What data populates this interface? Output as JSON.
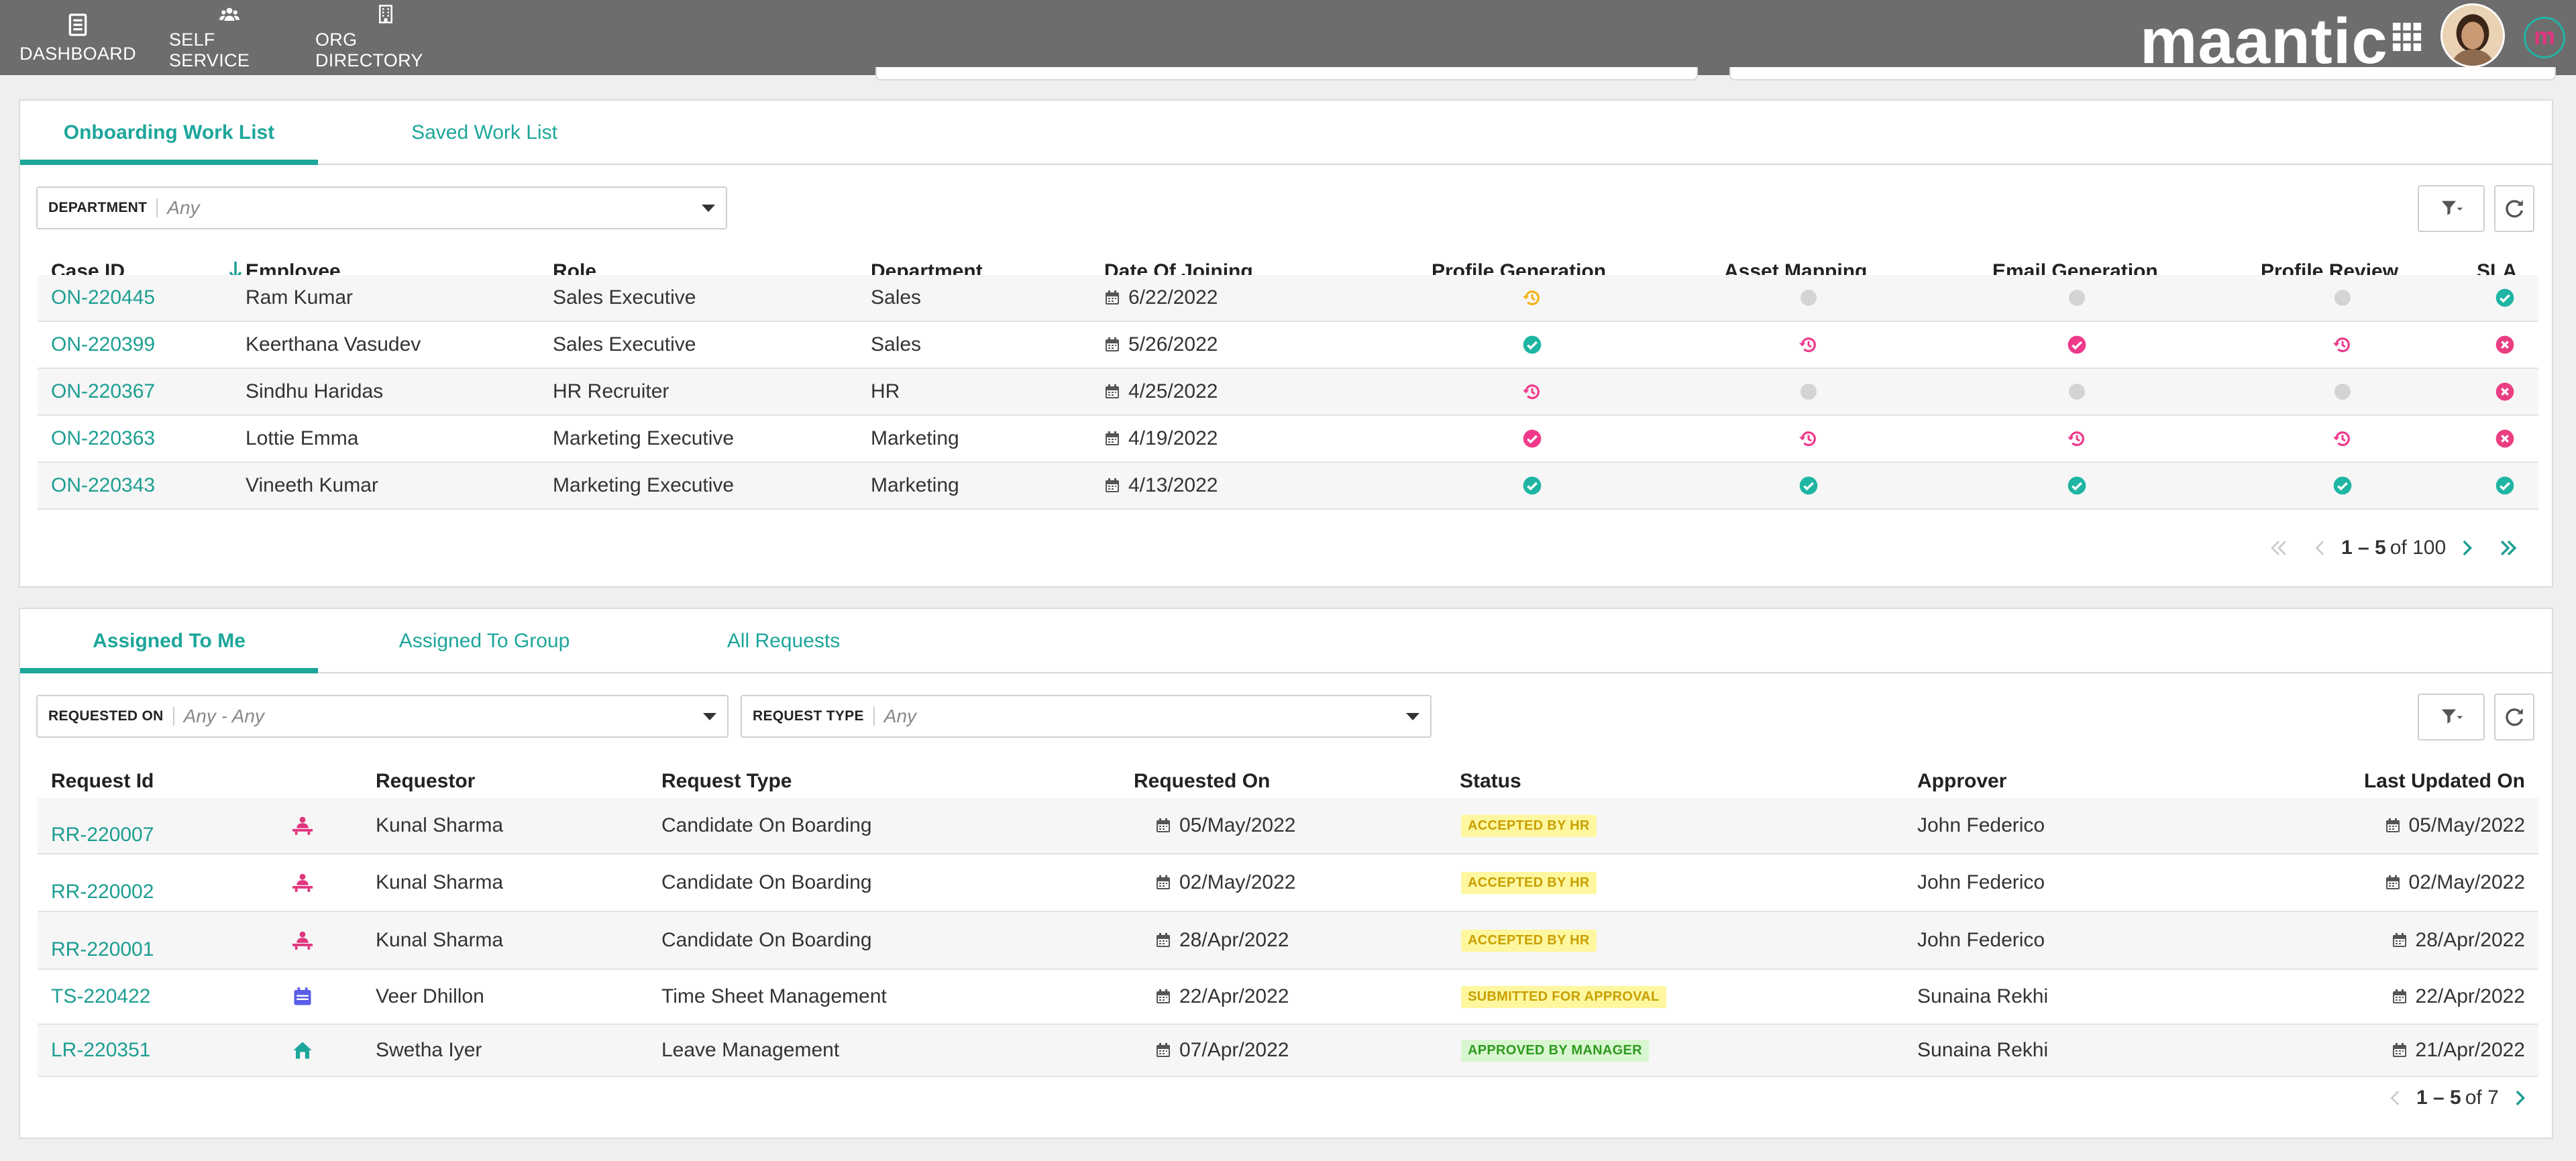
{
  "topbar": {
    "nav": [
      {
        "label": "DASHBOARD",
        "icon": "dashboard-icon"
      },
      {
        "label": "SELF SERVICE",
        "icon": "people-icon"
      },
      {
        "label": "ORG DIRECTORY",
        "icon": "building-icon"
      }
    ],
    "brand": "maantic",
    "mini_logo": "m",
    "colors": {
      "bar": "#6d6d6d",
      "accent": "#1da69a"
    }
  },
  "onboarding": {
    "tabs": [
      {
        "label": "Onboarding Work List",
        "active": true
      },
      {
        "label": "Saved Work List",
        "active": false
      }
    ],
    "filter": {
      "label": "DEPARTMENT",
      "value": "Any"
    },
    "columns": [
      "Case ID",
      "Employee",
      "Role",
      "Department",
      "Date Of Joining",
      "Profile Generation",
      "Asset Mapping",
      "Email Generation",
      "Profile Review",
      "SLA"
    ],
    "rows": [
      {
        "case_id": "ON-220445",
        "employee": "Ram Kumar",
        "role": "Sales Executive",
        "department": "Sales",
        "doj": "6/22/2022",
        "profile_generation": "pending-orange",
        "asset_mapping": "none",
        "email_generation": "none",
        "profile_review": "none",
        "sla": "ok"
      },
      {
        "case_id": "ON-220399",
        "employee": "Keerthana Vasudev",
        "role": "Sales Executive",
        "department": "Sales",
        "doj": "5/26/2022",
        "profile_generation": "done-teal",
        "asset_mapping": "pending-pink",
        "email_generation": "done-pink",
        "profile_review": "pending-pink",
        "sla": "breached"
      },
      {
        "case_id": "ON-220367",
        "employee": "Sindhu Haridas",
        "role": "HR Recruiter",
        "department": "HR",
        "doj": "4/25/2022",
        "profile_generation": "pending-pink",
        "asset_mapping": "none",
        "email_generation": "none",
        "profile_review": "none",
        "sla": "breached"
      },
      {
        "case_id": "ON-220363",
        "employee": "Lottie Emma",
        "role": "Marketing Executive",
        "department": "Marketing",
        "doj": "4/19/2022",
        "profile_generation": "done-pink",
        "asset_mapping": "pending-pink",
        "email_generation": "pending-pink",
        "profile_review": "pending-pink",
        "sla": "breached"
      },
      {
        "case_id": "ON-220343",
        "employee": "Vineeth Kumar",
        "role": "Marketing Executive",
        "department": "Marketing",
        "doj": "4/13/2022",
        "profile_generation": "done-teal",
        "asset_mapping": "done-teal",
        "email_generation": "done-teal",
        "profile_review": "done-teal",
        "sla": "ok"
      }
    ],
    "pager": {
      "range": "1 – 5",
      "of": "of 100"
    }
  },
  "requests": {
    "tabs": [
      {
        "label": "Assigned To Me",
        "active": true
      },
      {
        "label": "Assigned To Group",
        "active": false
      },
      {
        "label": "All Requests",
        "active": false
      }
    ],
    "filters": [
      {
        "label": "REQUESTED ON",
        "value": "Any - Any"
      },
      {
        "label": "REQUEST TYPE",
        "value": "Any"
      }
    ],
    "columns": [
      "Request Id",
      "Requestor",
      "Request Type",
      "Requested On",
      "Status",
      "Approver",
      "Last Updated On"
    ],
    "rows": [
      {
        "id": "RR-220007",
        "icon": "onboarding-icon",
        "requestor": "Kunal Sharma",
        "type": "Candidate On Boarding",
        "requested_on": "05/May/2022",
        "status": "ACCEPTED BY HR",
        "status_color": "yellow",
        "approver": "John Federico",
        "updated": "05/May/2022"
      },
      {
        "id": "RR-220002",
        "icon": "onboarding-icon",
        "requestor": "Kunal Sharma",
        "type": "Candidate On Boarding",
        "requested_on": "02/May/2022",
        "status": "ACCEPTED BY HR",
        "status_color": "yellow",
        "approver": "John Federico",
        "updated": "02/May/2022"
      },
      {
        "id": "RR-220001",
        "icon": "onboarding-icon",
        "requestor": "Kunal Sharma",
        "type": "Candidate On Boarding",
        "requested_on": "28/Apr/2022",
        "status": "ACCEPTED BY HR",
        "status_color": "yellow",
        "approver": "John Federico",
        "updated": "28/Apr/2022"
      },
      {
        "id": "TS-220422",
        "icon": "calendar-icon",
        "requestor": "Veer Dhillon",
        "type": "Time Sheet Management",
        "requested_on": "22/Apr/2022",
        "status": "SUBMITTED FOR APPROVAL",
        "status_color": "yellow",
        "approver": "Sunaina Rekhi",
        "updated": "22/Apr/2022"
      },
      {
        "id": "LR-220351",
        "icon": "home-icon",
        "requestor": "Swetha Iyer",
        "type": "Leave Management",
        "requested_on": "07/Apr/2022",
        "status": "APPROVED BY MANAGER",
        "status_color": "green",
        "approver": "Sunaina Rekhi",
        "updated": "21/Apr/2022"
      }
    ],
    "pager": {
      "range": "1 – 5",
      "of": "of 7"
    }
  }
}
